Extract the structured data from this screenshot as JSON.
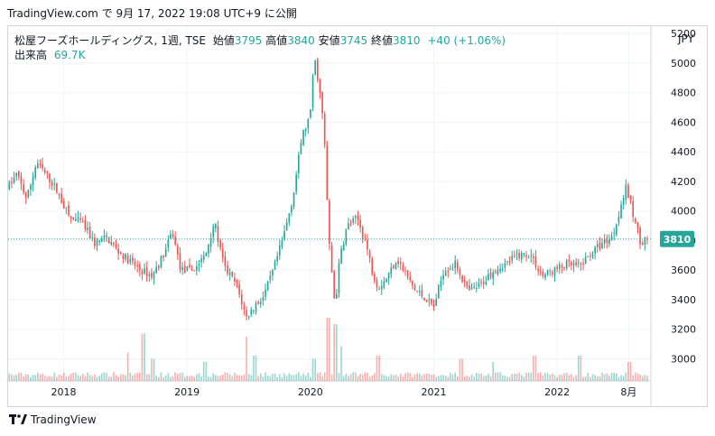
{
  "header": {
    "text": "TradingView.com で 9月 17, 2022 19:08 UTC+9 に公開"
  },
  "legend": {
    "symbol": "松屋フーズホールディングス, 1週, TSE",
    "open_label": "始値",
    "open": "3795",
    "high_label": "高値",
    "high": "3840",
    "low_label": "安値",
    "low": "3745",
    "close_label": "終値",
    "close": "3810",
    "change": "+40 (+1.06%)",
    "volume_label": "出来高",
    "volume": "69.7K"
  },
  "currency": "JPY",
  "footer": {
    "brand": "TradingView",
    "logo_icon": "tradingview-logo-icon"
  },
  "colors": {
    "up": "#26a69a",
    "down": "#ef5350",
    "grid": "#f0f3fa",
    "border": "#d1d4dc",
    "last_price_bg": "#26a69a"
  },
  "chart_data": {
    "type": "candlestick",
    "interval": "1週",
    "ylim": [
      2850,
      5250
    ],
    "y_ticks": [
      3000,
      3200,
      3400,
      3600,
      3800,
      4000,
      4200,
      4400,
      4600,
      4800,
      5000,
      5200
    ],
    "x_ticks": [
      {
        "label": "2018",
        "t": 2018.0
      },
      {
        "label": "2019",
        "t": 2019.0
      },
      {
        "label": "2020",
        "t": 2020.0
      },
      {
        "label": "2021",
        "t": 2021.0
      },
      {
        "label": "2022",
        "t": 2022.0
      },
      {
        "label": "8月",
        "t": 2022.58
      }
    ],
    "x_range": [
      2017.55,
      2022.76
    ],
    "last_price": 3810,
    "price_path": [
      [
        2017.55,
        4160
      ],
      [
        2017.62,
        4250
      ],
      [
        2017.7,
        4080
      ],
      [
        2017.78,
        4330
      ],
      [
        2017.88,
        4220
      ],
      [
        2017.95,
        4130
      ],
      [
        2018.05,
        3950
      ],
      [
        2018.15,
        3920
      ],
      [
        2018.25,
        3780
      ],
      [
        2018.35,
        3820
      ],
      [
        2018.45,
        3720
      ],
      [
        2018.55,
        3650
      ],
      [
        2018.62,
        3600
      ],
      [
        2018.72,
        3560
      ],
      [
        2018.82,
        3720
      ],
      [
        2018.88,
        3860
      ],
      [
        2018.95,
        3600
      ],
      [
        2019.05,
        3600
      ],
      [
        2019.15,
        3700
      ],
      [
        2019.22,
        3930
      ],
      [
        2019.3,
        3620
      ],
      [
        2019.4,
        3500
      ],
      [
        2019.48,
        3280
      ],
      [
        2019.55,
        3360
      ],
      [
        2019.62,
        3420
      ],
      [
        2019.7,
        3600
      ],
      [
        2019.78,
        3820
      ],
      [
        2019.86,
        4100
      ],
      [
        2019.93,
        4500
      ],
      [
        2020.0,
        4650
      ],
      [
        2020.03,
        5050
      ],
      [
        2020.07,
        4850
      ],
      [
        2020.11,
        4550
      ],
      [
        2020.15,
        3800
      ],
      [
        2020.2,
        3350
      ],
      [
        2020.24,
        3700
      ],
      [
        2020.3,
        3900
      ],
      [
        2020.38,
        3950
      ],
      [
        2020.45,
        3780
      ],
      [
        2020.5,
        3600
      ],
      [
        2020.55,
        3480
      ],
      [
        2020.62,
        3550
      ],
      [
        2020.7,
        3680
      ],
      [
        2020.78,
        3560
      ],
      [
        2020.85,
        3460
      ],
      [
        2020.92,
        3420
      ],
      [
        2021.0,
        3350
      ],
      [
        2021.08,
        3600
      ],
      [
        2021.18,
        3640
      ],
      [
        2021.28,
        3450
      ],
      [
        2021.38,
        3500
      ],
      [
        2021.48,
        3600
      ],
      [
        2021.58,
        3640
      ],
      [
        2021.68,
        3700
      ],
      [
        2021.78,
        3710
      ],
      [
        2021.88,
        3560
      ],
      [
        2021.98,
        3600
      ],
      [
        2022.08,
        3640
      ],
      [
        2022.18,
        3620
      ],
      [
        2022.28,
        3720
      ],
      [
        2022.38,
        3790
      ],
      [
        2022.45,
        3830
      ],
      [
        2022.52,
        4050
      ],
      [
        2022.56,
        4160
      ],
      [
        2022.62,
        3960
      ],
      [
        2022.68,
        3780
      ],
      [
        2022.72,
        3810
      ]
    ],
    "volume_scale": "relative",
    "volume_spikes": [
      [
        2018.52,
        0.45
      ],
      [
        2018.65,
        0.75
      ],
      [
        2018.72,
        0.35
      ],
      [
        2019.15,
        0.3
      ],
      [
        2019.48,
        0.7
      ],
      [
        2019.55,
        0.4
      ],
      [
        2020.03,
        0.35
      ],
      [
        2020.15,
        1.0
      ],
      [
        2020.2,
        0.9
      ],
      [
        2020.25,
        0.55
      ],
      [
        2020.55,
        0.4
      ],
      [
        2021.22,
        0.35
      ],
      [
        2021.48,
        0.3
      ],
      [
        2021.82,
        0.4
      ],
      [
        2022.18,
        0.4
      ],
      [
        2022.58,
        0.3
      ]
    ]
  }
}
